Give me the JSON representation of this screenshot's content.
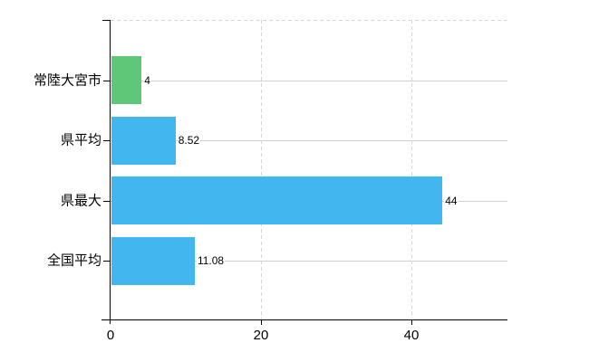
{
  "chart": {
    "colors": {
      "highlight_bar": "#5ec878",
      "default_bar": "#42b6ee",
      "h_gridline": "#ccd4cb",
      "v_gridline": "#d5d5d5",
      "axis": "#000000",
      "text": "#000000",
      "background": "#ffffff"
    }
  },
  "chart_data": {
    "type": "bar",
    "orientation": "horizontal",
    "title": "",
    "xlabel": "",
    "ylabel": "",
    "categories": [
      "常陸大宮市",
      "県平均",
      "県最大",
      "全国平均"
    ],
    "values": [
      4,
      8.52,
      44,
      11.08
    ],
    "data_labels": [
      "4",
      "8.52",
      "44",
      "11.08"
    ],
    "bar_colors": [
      "#5ec878",
      "#42b6ee",
      "#42b6ee",
      "#42b6ee"
    ],
    "x_ticks": [
      "0",
      "20",
      "40"
    ],
    "x_tick_values": [
      0,
      20,
      40
    ],
    "xlim": [
      0,
      52.8
    ],
    "grid": true,
    "legend": false
  }
}
